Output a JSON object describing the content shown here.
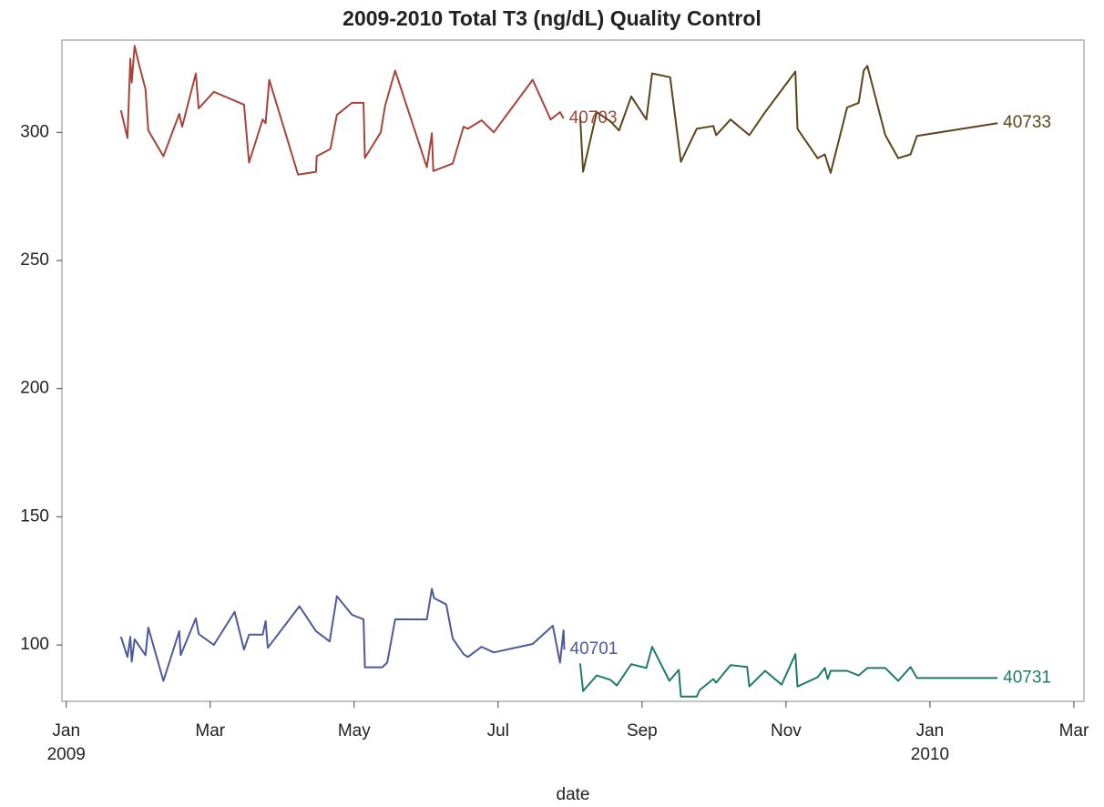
{
  "chart_data": {
    "type": "line",
    "title": "2009-2010 Total T3 (ng/dL) Quality Control",
    "x_label": "date",
    "xlim": [
      -0.06,
      14.14
    ],
    "xticks": [
      {
        "value": 0,
        "label": "Jan"
      },
      {
        "value": 2,
        "label": "Mar"
      },
      {
        "value": 4,
        "label": "May"
      },
      {
        "value": 6,
        "label": "Jul"
      },
      {
        "value": 8,
        "label": "Sep"
      },
      {
        "value": 10,
        "label": "Nov"
      },
      {
        "value": 12,
        "label": "Jan"
      },
      {
        "value": 14,
        "label": "Mar"
      }
    ],
    "year_labels": [
      {
        "value": 0,
        "label": "2009"
      },
      {
        "value": 12,
        "label": "2010"
      }
    ],
    "ylim": [
      78,
      336
    ],
    "yticks": [
      100,
      150,
      200,
      250,
      300
    ],
    "series": [
      {
        "name": "40703",
        "color": "#a8433a",
        "x": [
          0.76,
          0.85,
          0.89,
          0.91,
          0.95,
          1.0,
          1.1,
          1.14,
          1.35,
          1.57,
          1.61,
          1.8,
          1.84,
          2.05,
          2.47,
          2.54,
          2.73,
          2.77,
          2.82,
          3.22,
          3.47,
          3.48,
          3.67,
          3.76,
          3.97,
          4.13,
          4.15,
          4.37,
          4.43,
          4.57,
          5.01,
          5.08,
          5.1,
          5.37,
          5.52,
          5.58,
          5.77,
          5.94,
          6.48,
          6.73,
          6.86,
          6.91
        ],
        "values": [
          308.6,
          297.8,
          328.7,
          319.4,
          333.8,
          327.6,
          316.9,
          300.7,
          290.7,
          307.2,
          302.2,
          323,
          309.3,
          315.8,
          310.8,
          288.2,
          305,
          303.6,
          320.5,
          283.5,
          284.6,
          290.7,
          293.5,
          306.8,
          311.5,
          311.5,
          290,
          300,
          310.4,
          324.1,
          286.4,
          299.6,
          284.9,
          287.8,
          302.2,
          301.4,
          304.7,
          300,
          320.5,
          305,
          307.9,
          305.4
        ]
      },
      {
        "name": "40733",
        "color": "#5c4419",
        "x": [
          7.14,
          7.18,
          7.37,
          7.56,
          7.68,
          7.85,
          8.06,
          8.14,
          8.39,
          8.54,
          8.76,
          8.99,
          9.03,
          9.23,
          9.49,
          9.71,
          10.13,
          10.16,
          10.44,
          10.54,
          10.62,
          10.85,
          11.01,
          11.08,
          11.13,
          11.38,
          11.56,
          11.73,
          11.82,
          12.94
        ],
        "values": [
          306.1,
          284.6,
          307.9,
          304.3,
          300.7,
          314,
          305,
          323,
          321.5,
          288.5,
          301.4,
          302.5,
          298.9,
          305,
          298.9,
          307.9,
          323.7,
          301.4,
          289.9,
          291.4,
          284.2,
          309.7,
          311.5,
          324.1,
          325.9,
          298.9,
          289.9,
          291.4,
          298.6,
          303.6
        ]
      },
      {
        "name": "40701",
        "color": "#4c5a9c",
        "x": [
          0.76,
          0.85,
          0.89,
          0.91,
          0.95,
          1.1,
          1.14,
          1.35,
          1.57,
          1.59,
          1.8,
          1.84,
          2.05,
          2.34,
          2.47,
          2.54,
          2.73,
          2.77,
          2.8,
          3.24,
          3.47,
          3.66,
          3.76,
          3.97,
          4.13,
          4.15,
          4.39,
          4.46,
          4.57,
          5.01,
          5.08,
          5.11,
          5.28,
          5.37,
          5.52,
          5.58,
          5.77,
          5.94,
          6.48,
          6.76,
          6.86,
          6.91,
          6.92
        ],
        "values": [
          103.2,
          95.3,
          103.2,
          93.5,
          102.2,
          96,
          106.8,
          86,
          105.4,
          96,
          110.4,
          104.3,
          100,
          112.9,
          98.2,
          104,
          104,
          109.3,
          98.9,
          115.1,
          105.4,
          101.4,
          119,
          111.8,
          110,
          91.3,
          91.3,
          93.1,
          110,
          110,
          121.9,
          118.3,
          115.8,
          102.5,
          96.4,
          95.3,
          99.3,
          97.1,
          100.4,
          107.5,
          93.1,
          105.7,
          98.2
        ]
      },
      {
        "name": "40731",
        "color": "#1e7b6b",
        "x": [
          7.14,
          7.18,
          7.37,
          7.56,
          7.65,
          7.85,
          8.06,
          8.14,
          8.38,
          8.51,
          8.54,
          8.76,
          8.8,
          8.99,
          9.03,
          9.23,
          9.46,
          9.49,
          9.71,
          9.94,
          10.13,
          10.16,
          10.44,
          10.54,
          10.58,
          10.62,
          10.85,
          11.01,
          11.13,
          11.38,
          11.56,
          11.73,
          11.82,
          12.94
        ],
        "values": [
          92.8,
          82,
          88.1,
          86.4,
          84.2,
          92.5,
          91,
          99.3,
          86,
          90.3,
          79.9,
          79.9,
          82.4,
          86.7,
          85.3,
          92.1,
          91.4,
          83.8,
          89.9,
          84.5,
          96.4,
          83.8,
          87.4,
          91,
          86.7,
          89.9,
          89.9,
          88.1,
          91,
          91,
          86,
          91.4,
          87.1,
          87.1
        ]
      }
    ]
  }
}
